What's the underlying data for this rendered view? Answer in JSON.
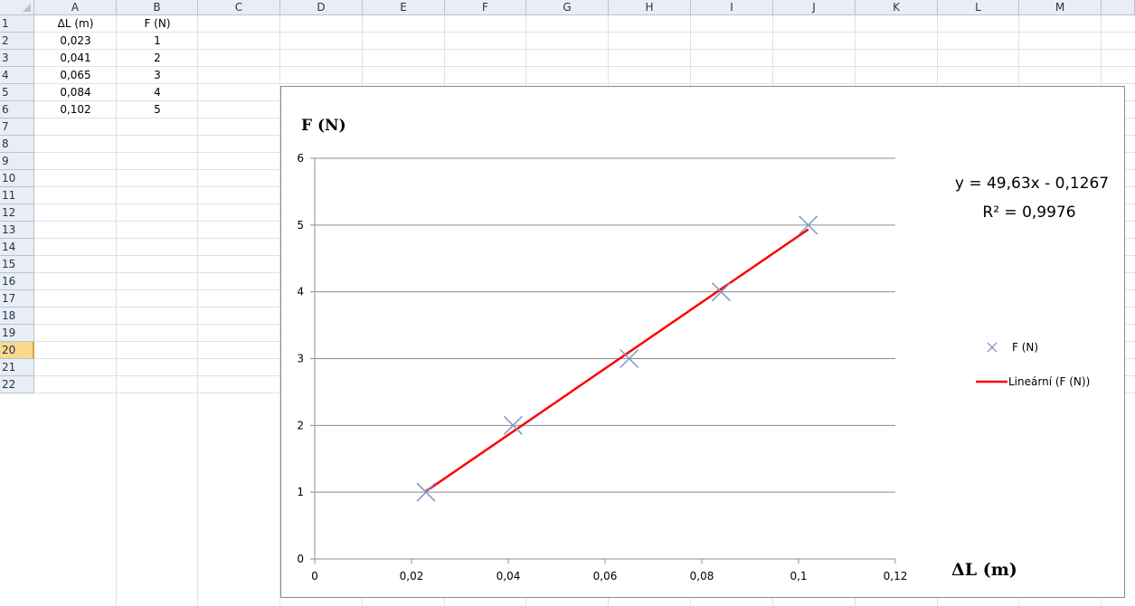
{
  "columns": [
    "A",
    "B",
    "C",
    "D",
    "E",
    "F",
    "G",
    "H",
    "I",
    "J",
    "K",
    "L",
    "M"
  ],
  "rows": [
    "1",
    "2",
    "3",
    "4",
    "5",
    "6",
    "7",
    "8",
    "9",
    "10",
    "11",
    "12",
    "13",
    "14",
    "15",
    "16",
    "17",
    "18",
    "19",
    "20",
    "21",
    "22"
  ],
  "active_row": "20",
  "cells": [
    {
      "id": "A1",
      "text": "ΔL (m)"
    },
    {
      "id": "B1",
      "text": "F (N)"
    },
    {
      "id": "A2",
      "text": "0,023"
    },
    {
      "id": "B2",
      "text": "1"
    },
    {
      "id": "A3",
      "text": "0,041"
    },
    {
      "id": "B3",
      "text": "2"
    },
    {
      "id": "A4",
      "text": "0,065"
    },
    {
      "id": "B4",
      "text": "3"
    },
    {
      "id": "A5",
      "text": "0,084"
    },
    {
      "id": "B5",
      "text": "4"
    },
    {
      "id": "A6",
      "text": "0,102"
    },
    {
      "id": "B6",
      "text": "5"
    }
  ],
  "chart_data": {
    "type": "scatter",
    "ylabel": "F (N)",
    "xlabel": "ΔL (m)",
    "xlim": [
      0,
      0.12
    ],
    "ylim": [
      0,
      6
    ],
    "x_ticks": [
      "0",
      "0,02",
      "0,04",
      "0,06",
      "0,08",
      "0,1",
      "0,12"
    ],
    "y_ticks": [
      "0",
      "1",
      "2",
      "3",
      "4",
      "5",
      "6"
    ],
    "grid": "horizontal major gridlines",
    "legend_position": "right",
    "series": [
      {
        "name": "F (N)",
        "marker": "x",
        "color": "#7f96c8",
        "x": [
          0.023,
          0.041,
          0.065,
          0.084,
          0.102
        ],
        "y": [
          1,
          2,
          3,
          4,
          5
        ]
      }
    ],
    "trendline": {
      "name": "Lineární (F (N))",
      "color": "#ff0000",
      "slope": 49.63,
      "intercept": -0.1267,
      "x_range": [
        0.023,
        0.102
      ]
    },
    "equation": "y = 49,63x - 0,1267",
    "r_squared": "R² = 0,9976"
  }
}
